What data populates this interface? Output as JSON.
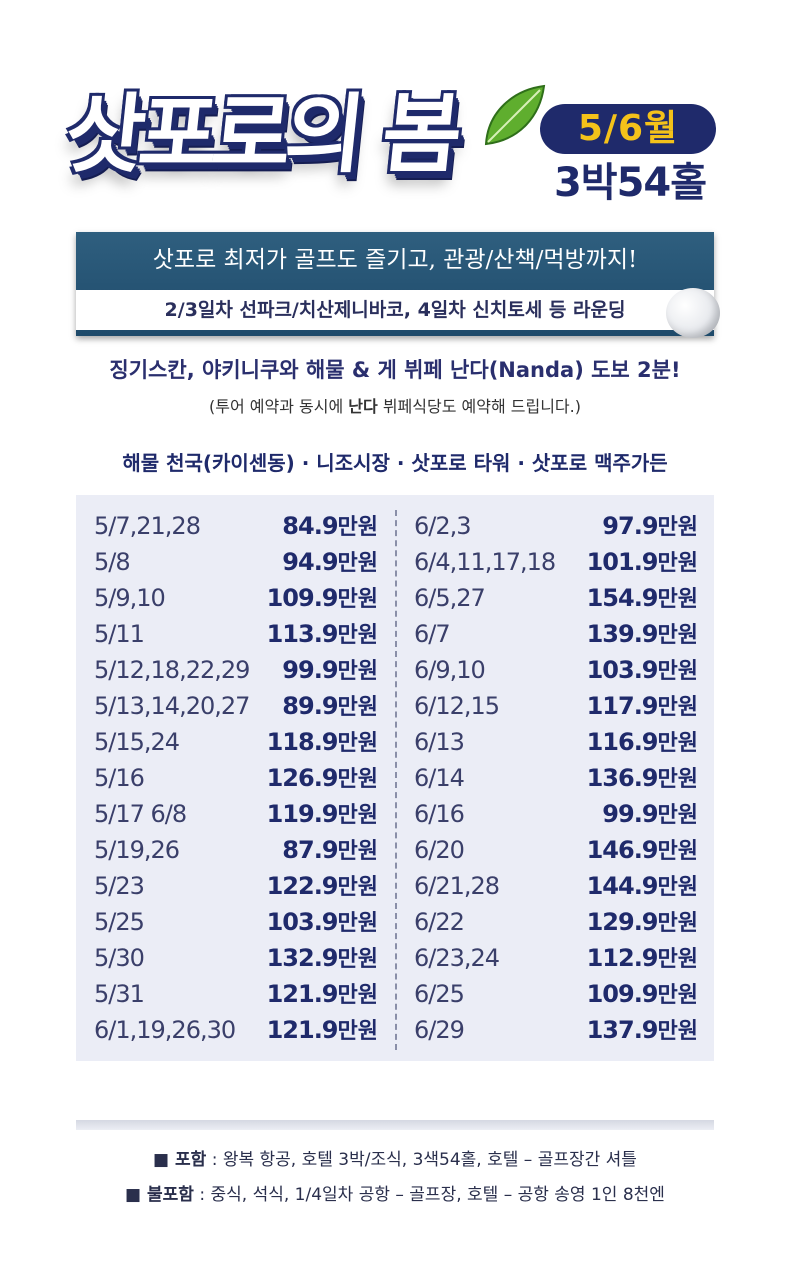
{
  "header": {
    "title": "삿포로의 봄",
    "month_badge": "5/6월",
    "duration": "3박54홀"
  },
  "banner": {
    "line1": "삿포로 최저가 골프도 즐기고, 관광/산책/먹방까지!",
    "line2": "2/3일차 선파크/치산제니바코, 4일차 신치토세 등 라운딩"
  },
  "info": {
    "line1": "징기스칸, 야키니쿠와 해물 & 게 뷔페 난다(Nanda) 도보 2분!",
    "line2_before": "(투어 예약과 동시에 ",
    "line2_bold": "난다",
    "line2_after": " 뷔페식당도 예약해 드립니다.)",
    "spots": "해물 천국(카이센동) · 니조시장 · 삿포로 타워 · 삿포로 맥주가든"
  },
  "prices": {
    "unit": "만원",
    "left": [
      {
        "date": "5/7,21,28",
        "price": "84.9"
      },
      {
        "date": "5/8",
        "price": "94.9"
      },
      {
        "date": "5/9,10",
        "price": "109.9"
      },
      {
        "date": "5/11",
        "price": "113.9"
      },
      {
        "date": "5/12,18,22,29",
        "price": "99.9"
      },
      {
        "date": "5/13,14,20,27",
        "price": "89.9"
      },
      {
        "date": "5/15,24",
        "price": "118.9"
      },
      {
        "date": "5/16",
        "price": "126.9"
      },
      {
        "date": "5/17  6/8",
        "price": "119.9"
      },
      {
        "date": "5/19,26",
        "price": "87.9"
      },
      {
        "date": "5/23",
        "price": "122.9"
      },
      {
        "date": "5/25",
        "price": "103.9"
      },
      {
        "date": "5/30",
        "price": "132.9"
      },
      {
        "date": "5/31",
        "price": "121.9"
      },
      {
        "date": "6/1,19,26,30",
        "price": "121.9"
      }
    ],
    "right": [
      {
        "date": "6/2,3",
        "price": "97.9"
      },
      {
        "date": "6/4,11,17,18",
        "price": "101.9"
      },
      {
        "date": "6/5,27",
        "price": "154.9"
      },
      {
        "date": "6/7",
        "price": "139.9"
      },
      {
        "date": "6/9,10",
        "price": "103.9"
      },
      {
        "date": "6/12,15",
        "price": "117.9"
      },
      {
        "date": "6/13",
        "price": "116.9"
      },
      {
        "date": "6/14",
        "price": "136.9"
      },
      {
        "date": "6/16",
        "price": "99.9"
      },
      {
        "date": "6/20",
        "price": "146.9"
      },
      {
        "date": "6/21,28",
        "price": "144.9"
      },
      {
        "date": "6/22",
        "price": "129.9"
      },
      {
        "date": "6/23,24",
        "price": "112.9"
      },
      {
        "date": "6/25",
        "price": "109.9"
      },
      {
        "date": "6/29",
        "price": "137.9"
      }
    ]
  },
  "footer": {
    "include_label": "■ 포함",
    "include_text": " : 왕복 항공, 호텔 3박/조식, 3색54홀, 호텔 – 골프장간 셔틀",
    "exclude_label": "■ 불포함",
    "exclude_text": " : 중식, 석식, 1/4일차 공항 – 골프장, 호텔 – 공항 송영 1인 8천엔"
  },
  "colors": {
    "navy": "#1f2a6b",
    "badge_text": "#f4c21a",
    "banner_bg": "#2f5f7f",
    "table_bg": "#ebedf6",
    "leaf": "#5fae2e"
  }
}
